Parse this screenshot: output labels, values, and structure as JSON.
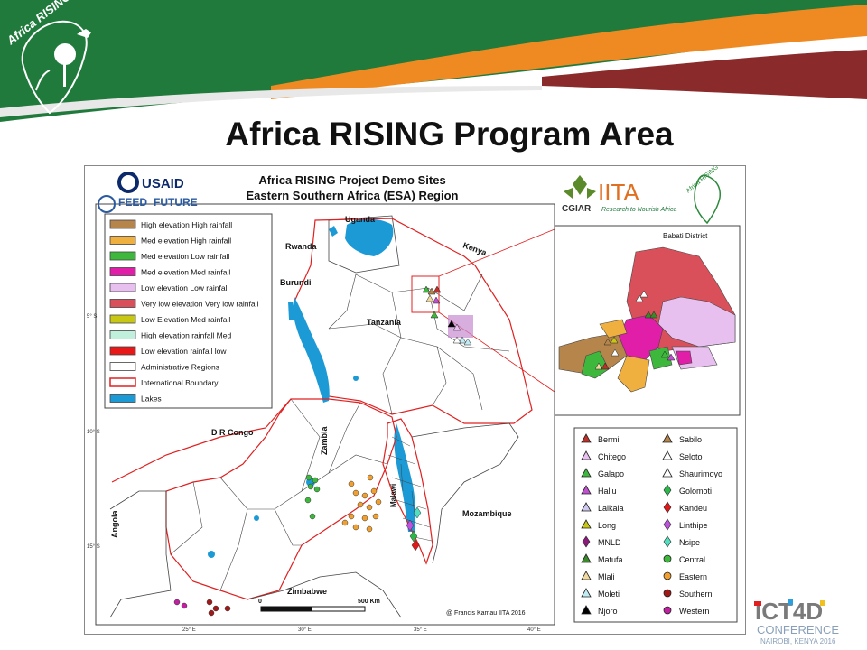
{
  "slide": {
    "title": "Africa RISING Program Area"
  },
  "header": {
    "logo_text": "Africa RISING"
  },
  "map": {
    "title_line1": "Africa RISING Project Demo Sites",
    "title_line2": "Eastern Southern Africa (ESA) Region",
    "logos": {
      "usaid": "USAID",
      "feed": "FEED",
      "future": "FUTURE",
      "cgiar": "CGIAR",
      "iita": "IITA",
      "iita_tag": "Research to Nourish Africa"
    },
    "legend": [
      {
        "label": "High elevation High rainfall",
        "color": "#b5854b"
      },
      {
        "label": "Med elevation High rainfall",
        "color": "#f0b040"
      },
      {
        "label": "Med elevation Low rainfall",
        "color": "#3db83d"
      },
      {
        "label": "Med elevation Med rainfall",
        "color": "#e01ea8"
      },
      {
        "label": "Low elevation Low rainfall",
        "color": "#e8c0f0"
      },
      {
        "label": "Very low elevation Very low rainfall",
        "color": "#d9505a"
      },
      {
        "label": "Low Elevation Med rainfall",
        "color": "#c8c814"
      },
      {
        "label": "High elevation rainfall Med",
        "color": "#c0f0dc"
      },
      {
        "label": "Low elevation rainfall  low",
        "color": "#e81818"
      },
      {
        "label": "Administrative Regions",
        "color": "#ffffff"
      },
      {
        "label": "International Boundary",
        "color": "#ffffff"
      },
      {
        "label": "Lakes",
        "color": "#1c9ad6"
      }
    ],
    "country_labels": {
      "uganda": "Uganda",
      "kenya": "Kenya",
      "rwanda": "Rwanda",
      "burundi": "Burundi",
      "tanzania": "Tanzania",
      "drc": "D R Congo",
      "zambia": "Zambia",
      "malawi": "Malawi",
      "mozambique": "Mozambique",
      "angola": "Angola",
      "zimbabwe": "Zimbabwe"
    },
    "lat_ticks": [
      "5° S",
      "10° S",
      "15° S"
    ],
    "lon_ticks": [
      "25° E",
      "30° E",
      "35° E",
      "40° E"
    ],
    "scale": {
      "start": "0",
      "end": "500 Km"
    },
    "credit": "@ Francis Kamau IITA 2016",
    "inset_title": "Babati District",
    "sites": [
      {
        "name": "Bermi",
        "symbol": "triangle",
        "color": "#c0302a"
      },
      {
        "name": "Chitego",
        "symbol": "triangle",
        "color": "#e8c0f0"
      },
      {
        "name": "Galapo",
        "symbol": "triangle",
        "color": "#3db83d"
      },
      {
        "name": "Hallu",
        "symbol": "triangle",
        "color": "#c050d0"
      },
      {
        "name": "Laikala",
        "symbol": "triangle",
        "color": "#d0c8f0"
      },
      {
        "name": "Long",
        "symbol": "triangle",
        "color": "#c8c814"
      },
      {
        "name": "MNLD",
        "symbol": "diamond",
        "color": "#8a1a7a"
      },
      {
        "name": "Matufa",
        "symbol": "triangle",
        "color": "#3a8a2a"
      },
      {
        "name": "Mlali",
        "symbol": "triangle",
        "color": "#f0d8a0"
      },
      {
        "name": "Moleti",
        "symbol": "triangle",
        "color": "#c0ecf4"
      },
      {
        "name": "Njoro",
        "symbol": "triangle",
        "color": "#000000"
      },
      {
        "name": "Sabilo",
        "symbol": "triangle",
        "color": "#b5854b"
      },
      {
        "name": "Seloto",
        "symbol": "triangle",
        "color": "#ffffff"
      },
      {
        "name": "Shaurimoyo",
        "symbol": "triangle",
        "color": "#ffffff"
      },
      {
        "name": "Golomoti",
        "symbol": "diamond",
        "color": "#2ab84a"
      },
      {
        "name": "Kandeu",
        "symbol": "diamond",
        "color": "#e01818"
      },
      {
        "name": "Linthipe",
        "symbol": "diamond",
        "color": "#c050e0"
      },
      {
        "name": "Nsipe",
        "symbol": "diamond",
        "color": "#50e0c0"
      },
      {
        "name": "Central",
        "symbol": "circle",
        "color": "#3db83d"
      },
      {
        "name": "Eastern",
        "symbol": "circle",
        "color": "#f0a030"
      },
      {
        "name": "Southern",
        "symbol": "circle",
        "color": "#a01818"
      },
      {
        "name": "Western",
        "symbol": "circle",
        "color": "#c020a0"
      }
    ]
  },
  "footer": {
    "ict_line1": "ICT4D",
    "ict_line2": "CONFERENCE",
    "ict_line3": "NAIROBI, KENYA 2016"
  }
}
